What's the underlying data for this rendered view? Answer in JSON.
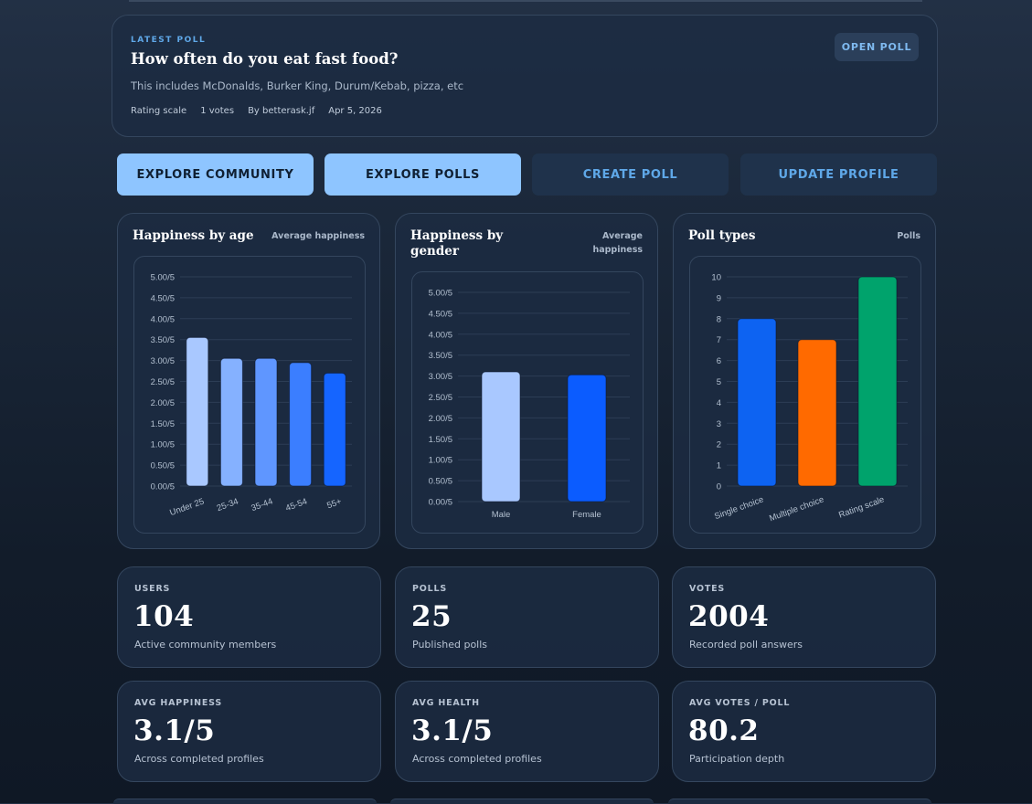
{
  "latest_poll": {
    "eyebrow": "LATEST POLL",
    "title": "How often do you eat fast food?",
    "description": "This includes McDonalds, Burker King, Durum/Kebab, pizza, etc",
    "scale": "Rating scale",
    "votes": "1 votes",
    "author": "By betterask.jf",
    "date": "Apr 5, 2026",
    "open_label": "OPEN POLL"
  },
  "actions": {
    "explore_community": "EXPLORE COMMUNITY",
    "explore_polls": "EXPLORE POLLS",
    "create_poll": "CREATE POLL",
    "update_profile": "UPDATE PROFILE"
  },
  "charts_meta": [
    {
      "title": "Happiness by age",
      "subtitle": "Average happiness"
    },
    {
      "title": "Happiness by gender",
      "subtitle": "Average happiness"
    },
    {
      "title": "Poll types",
      "subtitle": "Polls"
    }
  ],
  "chart_data": [
    {
      "type": "bar",
      "title": "Happiness by age",
      "ylabel": "Average happiness",
      "categories": [
        "Under 25",
        "25-34",
        "35-44",
        "45-54",
        "55+"
      ],
      "values": [
        3.55,
        3.05,
        3.05,
        2.95,
        2.7
      ],
      "ylim": [
        0,
        5
      ],
      "ticks": [
        "0.00/5",
        "0.50/5",
        "1.00/5",
        "1.50/5",
        "2.00/5",
        "2.50/5",
        "3.00/5",
        "3.50/5",
        "4.00/5",
        "4.50/5",
        "5.00/5"
      ],
      "colors": [
        "#a9c8ff",
        "#85b1ff",
        "#5f96ff",
        "#3b7eff",
        "#1565ff"
      ],
      "grid": true
    },
    {
      "type": "bar",
      "title": "Happiness by gender",
      "ylabel": "Average happiness",
      "categories": [
        "Male",
        "Female"
      ],
      "values": [
        3.1,
        3.03
      ],
      "ylim": [
        0,
        5
      ],
      "ticks": [
        "0.00/5",
        "0.50/5",
        "1.00/5",
        "1.50/5",
        "2.00/5",
        "2.50/5",
        "3.00/5",
        "3.50/5",
        "4.00/5",
        "4.50/5",
        "5.00/5"
      ],
      "colors": [
        "#a9c8ff",
        "#0b5cff"
      ],
      "grid": true
    },
    {
      "type": "bar",
      "title": "Poll types",
      "ylabel": "Polls",
      "categories": [
        "Single choice",
        "Multiple choice",
        "Rating scale"
      ],
      "values": [
        8,
        7,
        10
      ],
      "ylim": [
        0,
        10
      ],
      "ticks": [
        "0",
        "1",
        "2",
        "3",
        "4",
        "5",
        "6",
        "7",
        "8",
        "9",
        "10"
      ],
      "colors": [
        "#0d63f2",
        "#ff6a00",
        "#00a36c"
      ],
      "grid": true
    }
  ],
  "stats": [
    {
      "label": "USERS",
      "value": "104",
      "desc": "Active community members"
    },
    {
      "label": "POLLS",
      "value": "25",
      "desc": "Published polls"
    },
    {
      "label": "VOTES",
      "value": "2004",
      "desc": "Recorded poll answers"
    },
    {
      "label": "AVG HAPPINESS",
      "value": "3.1/5",
      "desc": "Across completed profiles"
    },
    {
      "label": "AVG HEALTH",
      "value": "3.1/5",
      "desc": "Across completed profiles"
    },
    {
      "label": "AVG VOTES / POLL",
      "value": "80.2",
      "desc": "Participation depth"
    }
  ]
}
